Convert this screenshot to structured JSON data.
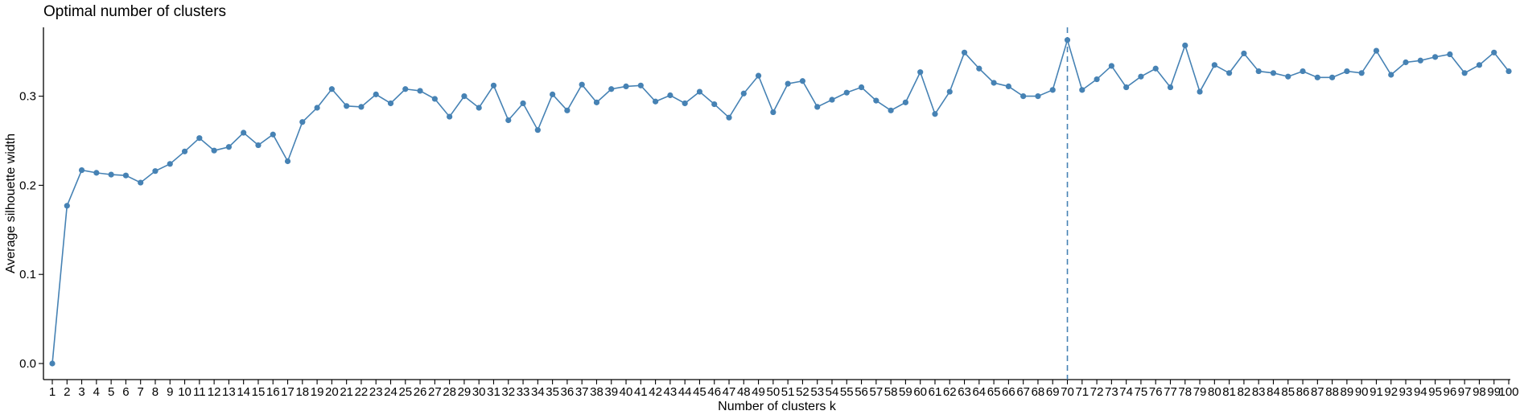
{
  "chart_data": {
    "type": "line",
    "title": "Optimal number of clusters",
    "xlabel": "Number of clusters k",
    "ylabel": "Average silhouette width",
    "ylim": [
      0,
      0.38
    ],
    "yticks": [
      0.0,
      0.1,
      0.2,
      0.3
    ],
    "ytick_labels": [
      "0.0",
      "0.1",
      "0.2",
      "0.3"
    ],
    "x": [
      1,
      2,
      3,
      4,
      5,
      6,
      7,
      8,
      9,
      10,
      11,
      12,
      13,
      14,
      15,
      16,
      17,
      18,
      19,
      20,
      21,
      22,
      23,
      24,
      25,
      26,
      27,
      28,
      29,
      30,
      31,
      32,
      33,
      34,
      35,
      36,
      37,
      38,
      39,
      40,
      41,
      42,
      43,
      44,
      45,
      46,
      47,
      48,
      49,
      50,
      51,
      52,
      53,
      54,
      55,
      56,
      57,
      58,
      59,
      60,
      61,
      62,
      63,
      64,
      65,
      66,
      67,
      68,
      69,
      70,
      71,
      72,
      73,
      74,
      75,
      76,
      77,
      78,
      79,
      80,
      81,
      82,
      83,
      84,
      85,
      86,
      87,
      88,
      89,
      90,
      91,
      92,
      93,
      94,
      95,
      96,
      97,
      98,
      99,
      100
    ],
    "values": [
      0.0,
      0.177,
      0.217,
      0.214,
      0.212,
      0.211,
      0.203,
      0.216,
      0.224,
      0.238,
      0.253,
      0.239,
      0.243,
      0.259,
      0.245,
      0.257,
      0.227,
      0.271,
      0.287,
      0.308,
      0.289,
      0.288,
      0.302,
      0.292,
      0.308,
      0.306,
      0.297,
      0.277,
      0.3,
      0.287,
      0.312,
      0.273,
      0.292,
      0.262,
      0.302,
      0.284,
      0.313,
      0.293,
      0.308,
      0.311,
      0.312,
      0.294,
      0.301,
      0.292,
      0.305,
      0.291,
      0.276,
      0.303,
      0.323,
      0.282,
      0.314,
      0.317,
      0.288,
      0.296,
      0.304,
      0.31,
      0.295,
      0.284,
      0.293,
      0.327,
      0.28,
      0.305,
      0.349,
      0.331,
      0.315,
      0.311,
      0.3,
      0.3,
      0.307,
      0.363,
      0.307,
      0.319,
      0.334,
      0.31,
      0.322,
      0.331,
      0.31,
      0.357,
      0.305,
      0.335,
      0.326,
      0.348,
      0.328,
      0.326,
      0.322,
      0.328,
      0.321,
      0.321,
      0.328,
      0.326,
      0.351,
      0.324,
      0.338,
      0.34,
      0.344,
      0.347,
      0.326,
      0.335,
      0.349,
      0.328
    ],
    "optimal_k": 70,
    "series_color": "#4682B4"
  }
}
